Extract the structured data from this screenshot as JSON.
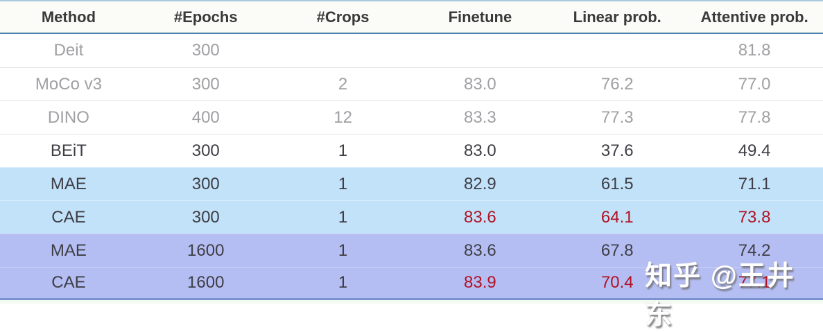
{
  "table": {
    "columns": [
      {
        "label": "Method"
      },
      {
        "label": "#Epochs"
      },
      {
        "label": "#Crops"
      },
      {
        "label": "Finetune"
      },
      {
        "label": "Linear prob."
      },
      {
        "label": "Attentive prob."
      }
    ],
    "rows": [
      {
        "cells": [
          "Deit",
          "300",
          "",
          "",
          "",
          "81.8"
        ],
        "bg": "white",
        "text": "gray",
        "red_cols": []
      },
      {
        "cells": [
          "MoCo v3",
          "300",
          "2",
          "83.0",
          "76.2",
          "77.0"
        ],
        "bg": "white",
        "text": "gray",
        "red_cols": []
      },
      {
        "cells": [
          "DINO",
          "400",
          "12",
          "83.3",
          "77.3",
          "77.8"
        ],
        "bg": "white",
        "text": "gray",
        "red_cols": []
      },
      {
        "cells": [
          "BEiT",
          "300",
          "1",
          "83.0",
          "37.6",
          "49.4"
        ],
        "bg": "white",
        "text": "dark",
        "red_cols": []
      },
      {
        "cells": [
          "MAE",
          "300",
          "1",
          "82.9",
          "61.5",
          "71.1"
        ],
        "bg": "blue",
        "text": "dark",
        "red_cols": []
      },
      {
        "cells": [
          "CAE",
          "300",
          "1",
          "83.6",
          "64.1",
          "73.8"
        ],
        "bg": "blue",
        "text": "dark",
        "red_cols": [
          3,
          4,
          5
        ]
      },
      {
        "cells": [
          "MAE",
          "1600",
          "1",
          "83.6",
          "67.8",
          "74.2"
        ],
        "bg": "purple",
        "text": "dark",
        "red_cols": []
      },
      {
        "cells": [
          "CAE",
          "1600",
          "1",
          "83.9",
          "70.4",
          "77.1"
        ],
        "bg": "purple",
        "text": "dark",
        "red_cols": [
          3,
          4,
          5
        ]
      }
    ]
  },
  "watermark": {
    "text": "知乎 @王井东"
  },
  "colors": {
    "header_line": "#4a80ab",
    "top_border": "#a9c9de",
    "bottom_line": "#7b94ce",
    "row_blue": "#c2e2f9",
    "row_purple": "#b5bef3",
    "text_dark": "#3e3e46",
    "text_gray": "#a0a0a4",
    "text_red": "#b11224",
    "header_text": "#3a3a3a",
    "header_bg": "#fbfbf8",
    "separator": "#e4e4e4",
    "footer_strip": "#f3faf1"
  }
}
